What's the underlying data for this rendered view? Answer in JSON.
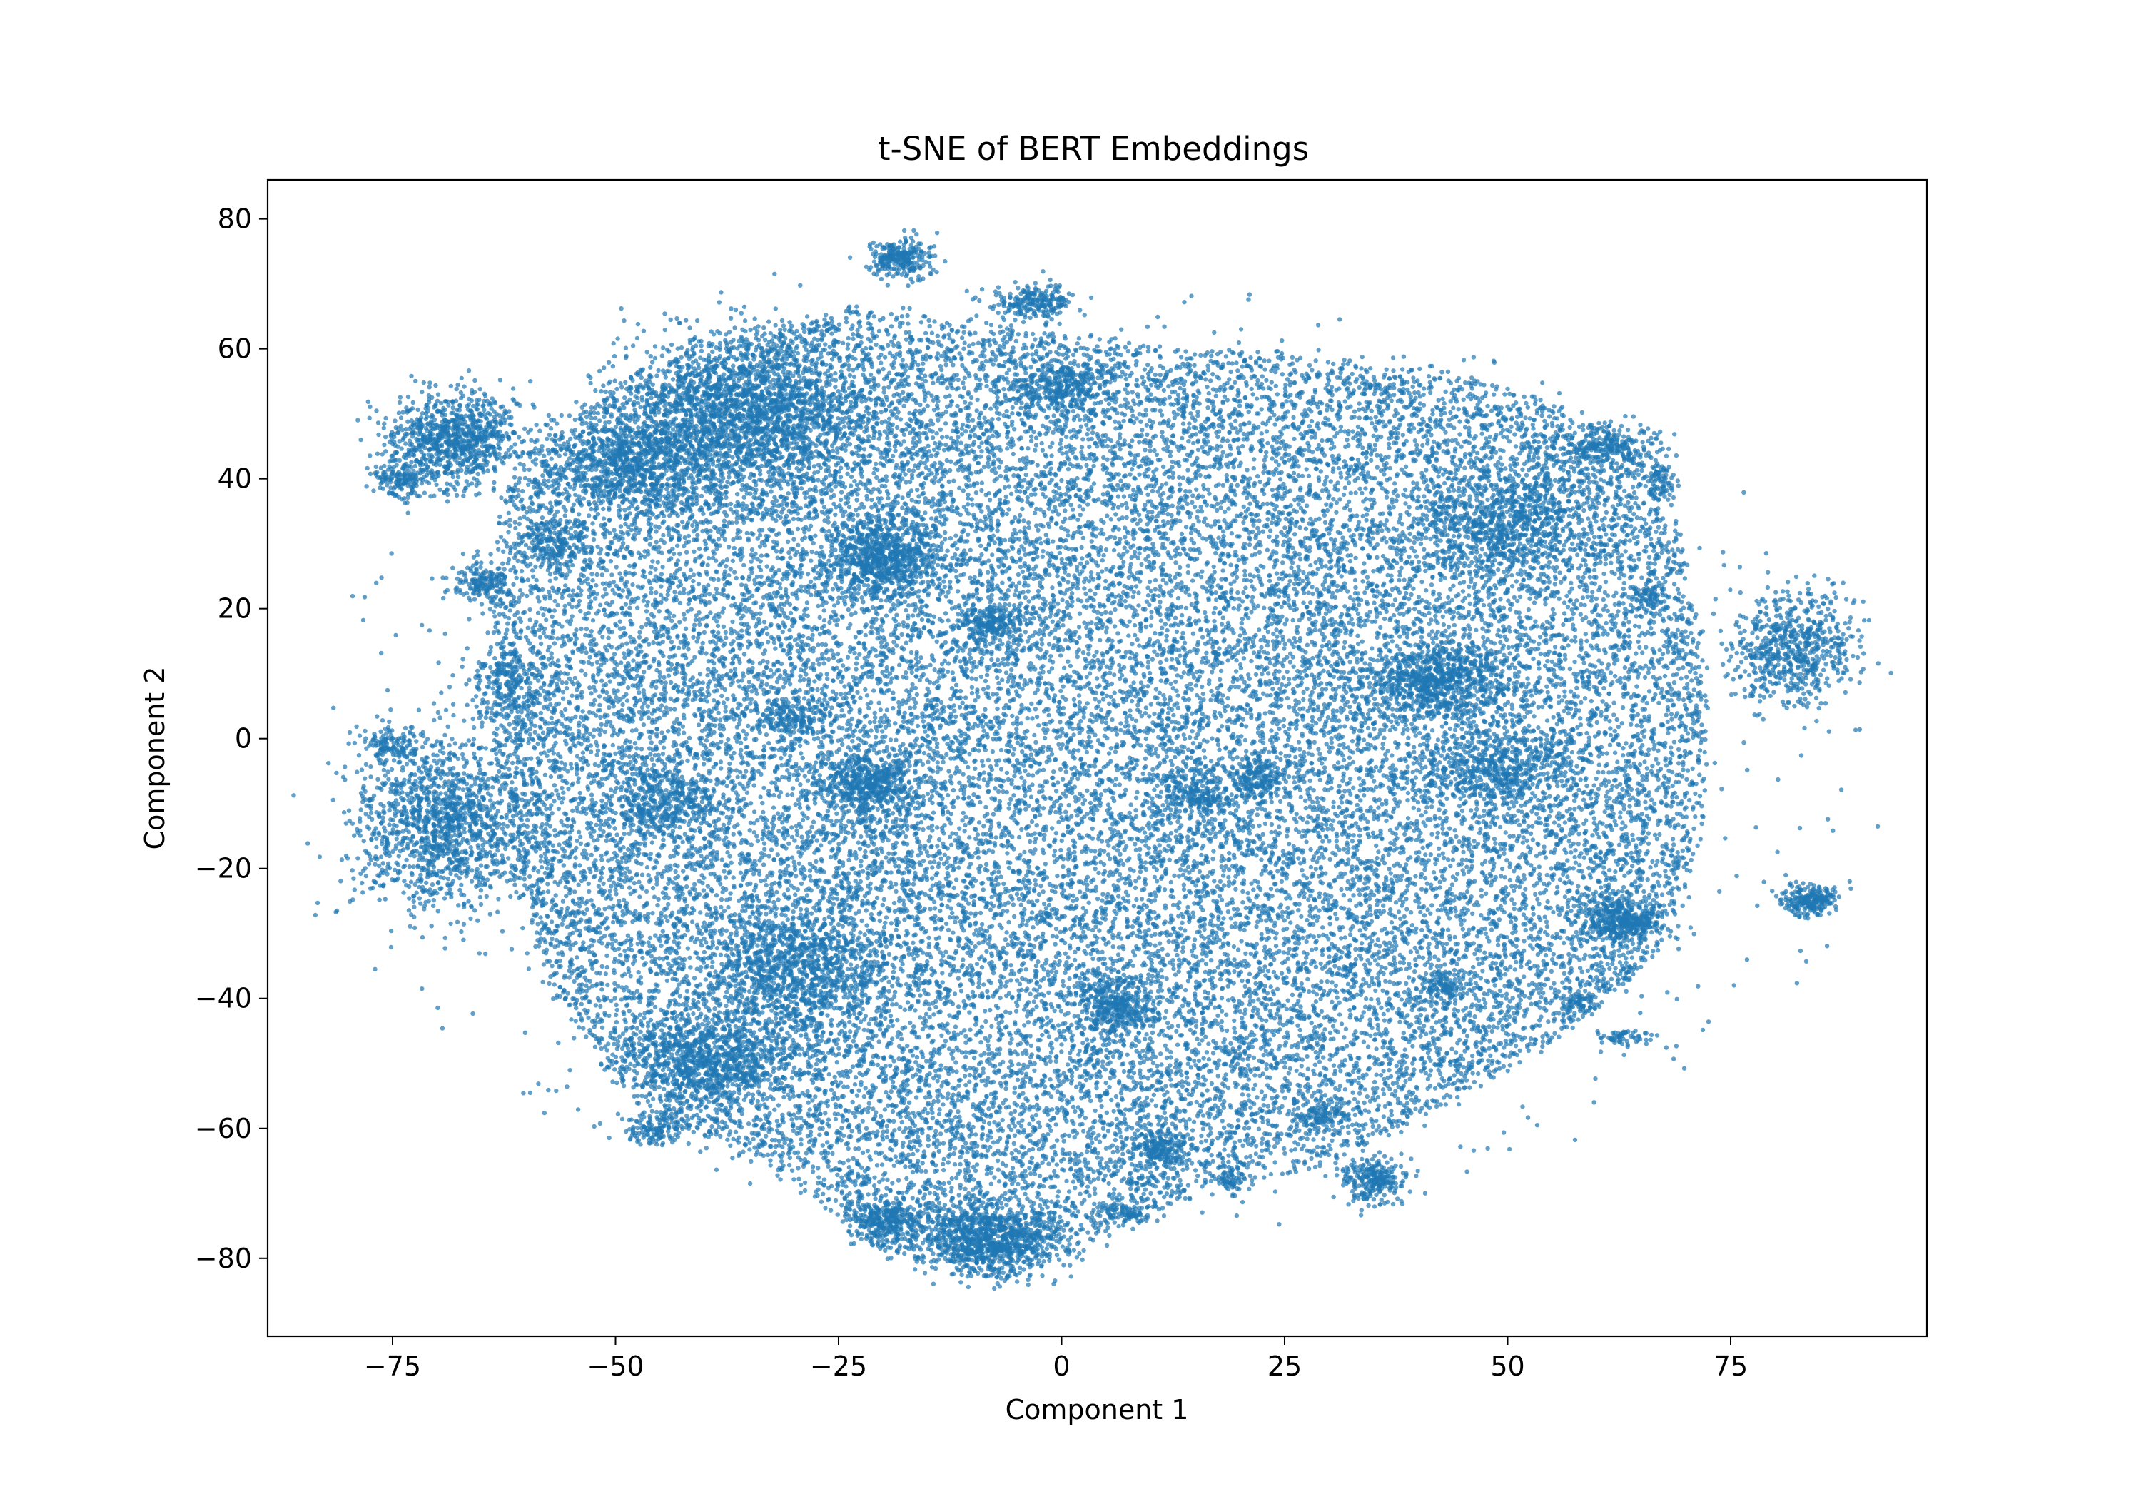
{
  "chart_data": {
    "type": "scatter",
    "title": "t-SNE of BERT Embeddings",
    "xlabel": "Component 1",
    "ylabel": "Component 2",
    "xlim": [
      -89,
      97
    ],
    "ylim": [
      -92,
      86
    ],
    "xticks": [
      -75,
      -50,
      -25,
      0,
      25,
      50,
      75
    ],
    "yticks": [
      -80,
      -60,
      -40,
      -20,
      0,
      20,
      40,
      60,
      80
    ],
    "xtick_labels": [
      "−75",
      "−50",
      "−25",
      "0",
      "25",
      "50",
      "75"
    ],
    "ytick_labels": [
      "−80",
      "−60",
      "−40",
      "−20",
      "0",
      "20",
      "40",
      "60",
      "80"
    ],
    "grid": false,
    "legend": false,
    "point_color": "#1f77b4",
    "point_opacity": 0.7,
    "series": [
      {
        "points": "approximately 40000 points forming one dense diffuse cloud spanning x -78 to 88, y -84 to 78, with tighter sub-clusters",
        "body_region": {
          "x_range": [
            -60,
            70
          ],
          "y_range": [
            -78,
            64
          ],
          "approx_points": 32000
        },
        "clusters": [
          {
            "x": -68,
            "y": 46,
            "sx": 3.6,
            "sy": 3.6,
            "n": 900
          },
          {
            "x": -74,
            "y": 40,
            "sx": 1.4,
            "sy": 1.3,
            "n": 140
          },
          {
            "x": -65,
            "y": 24,
            "sx": 1.6,
            "sy": 1.6,
            "n": 160
          },
          {
            "x": -69,
            "y": -13,
            "sx": 5.0,
            "sy": 6.5,
            "n": 1400
          },
          {
            "x": -75,
            "y": -1,
            "sx": 1.8,
            "sy": 1.5,
            "n": 130
          },
          {
            "x": -18,
            "y": 74,
            "sx": 1.8,
            "sy": 1.5,
            "n": 260
          },
          {
            "x": -3,
            "y": 67,
            "sx": 2.2,
            "sy": 1.5,
            "n": 220
          },
          {
            "x": -20,
            "y": 28,
            "sx": 3.2,
            "sy": 3.2,
            "n": 700
          },
          {
            "x": -22,
            "y": -7,
            "sx": 2.8,
            "sy": 2.6,
            "n": 500
          },
          {
            "x": 6,
            "y": -41,
            "sx": 2.2,
            "sy": 2.2,
            "n": 350
          },
          {
            "x": -8,
            "y": -77,
            "sx": 4.2,
            "sy": 2.8,
            "n": 900
          },
          {
            "x": -20,
            "y": -74,
            "sx": 2.0,
            "sy": 1.6,
            "n": 250
          },
          {
            "x": 42,
            "y": 9,
            "sx": 3.8,
            "sy": 2.6,
            "n": 650
          },
          {
            "x": 35,
            "y": -68,
            "sx": 1.7,
            "sy": 1.8,
            "n": 260
          },
          {
            "x": 63,
            "y": -28,
            "sx": 2.4,
            "sy": 2.0,
            "n": 400
          },
          {
            "x": 84,
            "y": -25,
            "sx": 1.5,
            "sy": 1.1,
            "n": 230
          },
          {
            "x": 82,
            "y": 14,
            "sx": 3.5,
            "sy": 4.2,
            "n": 650
          },
          {
            "x": 61,
            "y": 45,
            "sx": 2.8,
            "sy": 1.8,
            "n": 250
          },
          {
            "x": -35,
            "y": 50,
            "sx": 7.0,
            "sy": 6.0,
            "n": 1800
          },
          {
            "x": -48,
            "y": 42,
            "sx": 5.0,
            "sy": 3.5,
            "n": 700
          },
          {
            "x": -40,
            "y": -50,
            "sx": 5.0,
            "sy": 3.5,
            "n": 800
          },
          {
            "x": -30,
            "y": -35,
            "sx": 5.0,
            "sy": 5.0,
            "n": 900
          },
          {
            "x": 50,
            "y": 33,
            "sx": 6.0,
            "sy": 4.0,
            "n": 700
          },
          {
            "x": 49,
            "y": -5,
            "sx": 4.0,
            "sy": 3.0,
            "n": 400
          },
          {
            "x": -8,
            "y": 18,
            "sx": 2.0,
            "sy": 1.6,
            "n": 200
          },
          {
            "x": 15,
            "y": -9,
            "sx": 2.2,
            "sy": 1.8,
            "n": 200
          },
          {
            "x": 22,
            "y": -6,
            "sx": 1.6,
            "sy": 1.4,
            "n": 150
          },
          {
            "x": -45,
            "y": -10,
            "sx": 3.0,
            "sy": 3.0,
            "n": 350
          },
          {
            "x": -57,
            "y": 30,
            "sx": 1.8,
            "sy": 1.8,
            "n": 150
          },
          {
            "x": -62,
            "y": 8,
            "sx": 2.4,
            "sy": 3.2,
            "n": 250
          },
          {
            "x": 11,
            "y": -63,
            "sx": 1.8,
            "sy": 1.6,
            "n": 180
          },
          {
            "x": 0,
            "y": 54,
            "sx": 3.0,
            "sy": 2.5,
            "n": 300
          },
          {
            "x": 43,
            "y": -38,
            "sx": 1.4,
            "sy": 1.2,
            "n": 100
          },
          {
            "x": -45,
            "y": -60,
            "sx": 2.0,
            "sy": 1.5,
            "n": 150
          },
          {
            "x": -30,
            "y": 3,
            "sx": 2.0,
            "sy": 1.5,
            "n": 150
          },
          {
            "x": 58,
            "y": -40,
            "sx": 1.2,
            "sy": 1.2,
            "n": 60
          },
          {
            "x": 63,
            "y": -46,
            "sx": 1.5,
            "sy": 0.6,
            "n": 60
          },
          {
            "x": 29,
            "y": -58,
            "sx": 1.6,
            "sy": 0.9,
            "n": 80
          },
          {
            "x": 7,
            "y": -73,
            "sx": 1.6,
            "sy": 0.8,
            "n": 70
          },
          {
            "x": 19,
            "y": -68,
            "sx": 1.0,
            "sy": 1.0,
            "n": 50
          },
          {
            "x": 66,
            "y": 22,
            "sx": 1.0,
            "sy": 1.0,
            "n": 60
          },
          {
            "x": 67,
            "y": 40,
            "sx": 1.0,
            "sy": 1.0,
            "n": 60
          }
        ]
      }
    ]
  }
}
